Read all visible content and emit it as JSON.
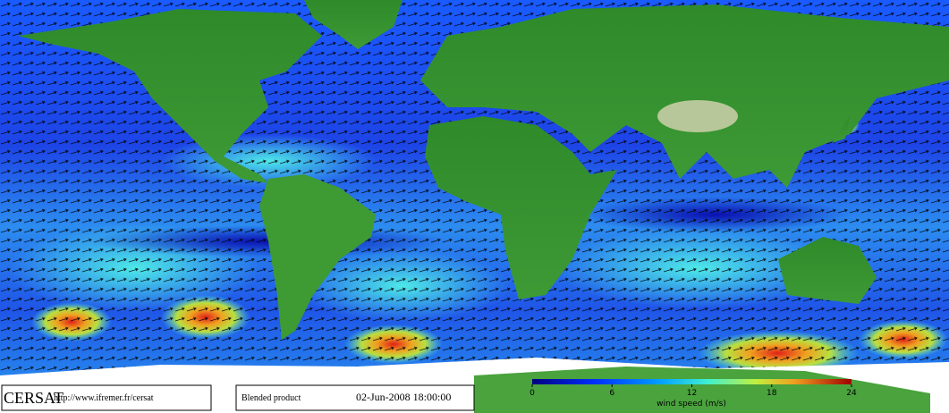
{
  "footer": {
    "logo": "CERSAT",
    "url": "http://www.ifremer.fr/cersat",
    "product": "Blended product",
    "timestamp": "02-Jun-2008 18:00:00"
  },
  "colorbar": {
    "label": "wind speed (m/s)",
    "lim": [
      0,
      24
    ],
    "ticks": [
      0,
      6,
      12,
      18,
      24
    ]
  }
}
